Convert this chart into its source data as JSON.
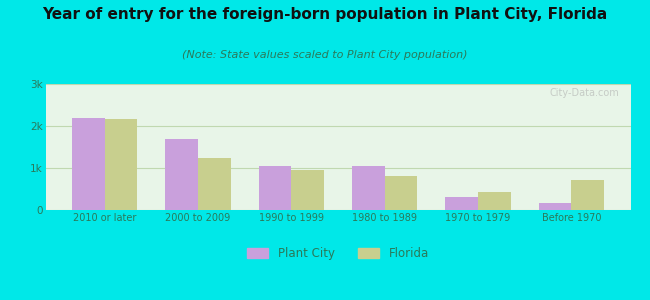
{
  "categories": [
    "2010 or later",
    "2000 to 2009",
    "1990 to 1999",
    "1980 to 1989",
    "1970 to 1979",
    "Before 1970"
  ],
  "plant_city": [
    2200,
    1700,
    1050,
    1040,
    300,
    170
  ],
  "florida": [
    2160,
    1250,
    960,
    800,
    440,
    720
  ],
  "plant_city_color": "#c9a0dc",
  "florida_color": "#c8cf8e",
  "title": "Year of entry for the foreign-born population in Plant City, Florida",
  "subtitle": "(Note: State values scaled to Plant City population)",
  "legend_plant_city": "Plant City",
  "legend_florida": "Florida",
  "ylim": [
    0,
    3000
  ],
  "yticks": [
    0,
    1000,
    2000,
    3000
  ],
  "ytick_labels": [
    "0",
    "1k",
    "2k",
    "3k"
  ],
  "background_outer": "#00e8e8",
  "background_inner": "#e8f5e8",
  "title_fontsize": 11,
  "subtitle_fontsize": 8,
  "bar_width": 0.35,
  "grid_color": "#c0d8b0",
  "tick_color": "#2a7a5a",
  "title_color": "#111111",
  "subtitle_color": "#2a7a5a"
}
